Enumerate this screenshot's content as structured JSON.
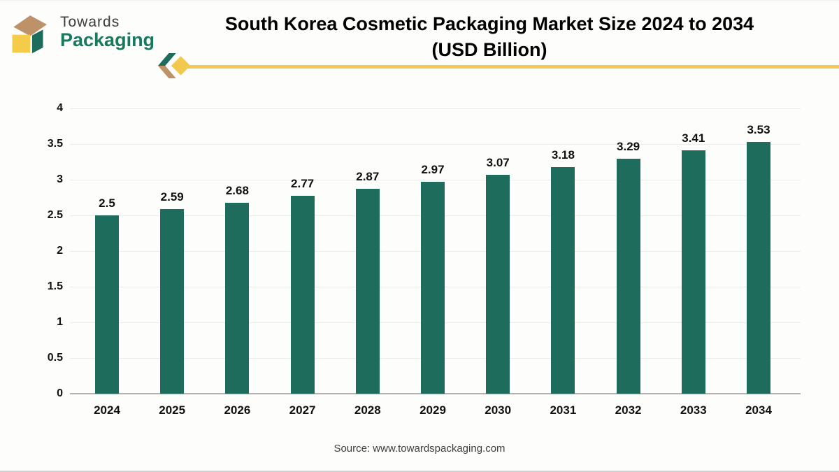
{
  "header": {
    "logo": {
      "line1": "Towards",
      "line2": "Packaging"
    },
    "title_line1": "South Korea Cosmetic Packaging Market Size 2024 to 2034",
    "title_line2": "(USD Billion)"
  },
  "chart_data": {
    "type": "bar",
    "title": "South Korea Cosmetic Packaging Market Size 2024 to 2034 (USD Billion)",
    "xlabel": "",
    "ylabel": "",
    "categories": [
      "2024",
      "2025",
      "2026",
      "2027",
      "2028",
      "2029",
      "2030",
      "2031",
      "2032",
      "2033",
      "2034"
    ],
    "values": [
      2.5,
      2.59,
      2.68,
      2.77,
      2.87,
      2.97,
      3.07,
      3.18,
      3.29,
      3.41,
      3.53
    ],
    "value_labels": [
      "2.5",
      "2.59",
      "2.68",
      "2.77",
      "2.87",
      "2.97",
      "3.07",
      "3.18",
      "3.29",
      "3.41",
      "3.53"
    ],
    "ylim": [
      0,
      4
    ],
    "yticks": [
      0,
      0.5,
      1,
      1.5,
      2,
      2.5,
      3,
      3.5,
      4
    ],
    "ytick_labels": [
      "0",
      "0.5",
      "1",
      "1.5",
      "2",
      "2.5",
      "3",
      "3.5",
      "4"
    ],
    "grid": true,
    "legend": "none",
    "bar_color": "#1E6C5C"
  },
  "footer": {
    "source": "Source: www.towardspackaging.com"
  },
  "colors": {
    "bar": "#1E6C5C",
    "brand_green": "#17795E",
    "brand_yellow": "#F2C94C",
    "brand_tan": "#BD9268",
    "title_text": "#000000",
    "axis_text": "#111111",
    "gridline": "#ececec",
    "baseline": "#b3b3b3",
    "background": "#FDFDFB"
  }
}
